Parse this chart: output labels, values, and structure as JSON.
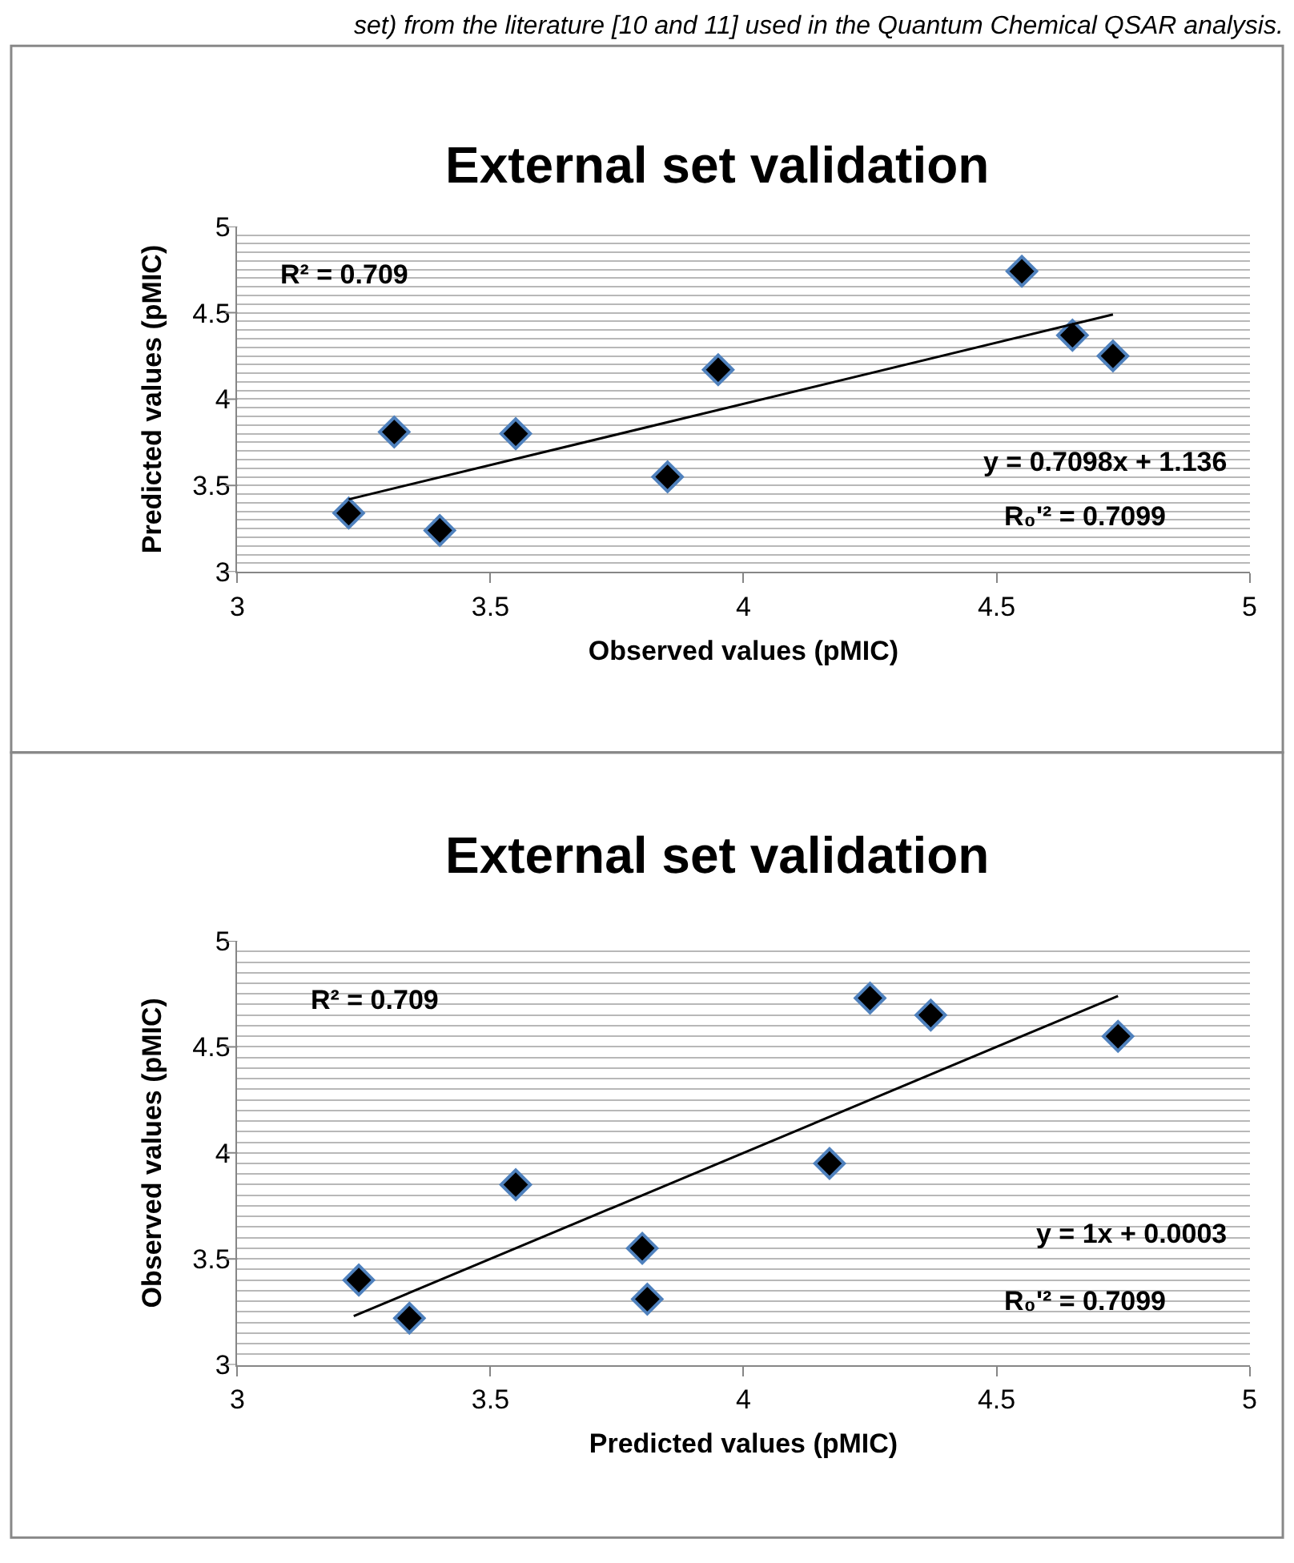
{
  "chart_data": [
    {
      "type": "scatter",
      "title": "External set validation",
      "xlabel": "Observed values (pMIC)",
      "ylabel": "Predicted values (pMIC)",
      "annotations": [
        "set) from the literature [10 and 11] used in the Quantum Chemical QSAR analysis.",
        "R² = 0.709",
        "y = 0.7098x + 1.136",
        "R₀'² = 0.7099"
      ],
      "series": [
        {
          "color": "#000000",
          "marker": "diamond",
          "x": [
            3.22,
            3.31,
            3.4,
            3.55,
            3.85,
            3.95,
            4.55,
            4.65,
            4.73
          ],
          "values": [
            3.34,
            3.81,
            3.24,
            3.8,
            3.55,
            4.17,
            4.74,
            4.37,
            4.25
          ]
        },
        {
          "type": "line",
          "color": "#000000",
          "x": [
            3.22,
            4.73
          ],
          "values": [
            3.42,
            4.49
          ]
        }
      ],
      "xlim": [
        3,
        5
      ],
      "xticks": [
        3,
        3.5,
        4,
        4.5,
        5
      ],
      "ylim": [
        3,
        5
      ],
      "yticks": [
        3,
        {
          "value": 3.05,
          "label": null
        },
        {
          "value": 3.1,
          "label": null
        },
        {
          "value": 3.15,
          "label": null
        },
        {
          "value": 3.2,
          "label": null
        },
        {
          "value": 3.25,
          "label": null
        },
        {
          "value": 3.3,
          "label": null
        },
        {
          "value": 3.35,
          "label": null
        },
        {
          "value": 3.4,
          "label": null
        },
        {
          "value": 3.45,
          "label": null
        },
        3.5,
        {
          "value": 3.55,
          "label": null
        },
        {
          "value": 3.6,
          "label": null
        },
        {
          "value": 3.65,
          "label": null
        },
        {
          "value": 3.7,
          "label": null
        },
        {
          "value": 3.75,
          "label": null
        },
        {
          "value": 3.8,
          "label": null
        },
        {
          "value": 3.85,
          "label": null
        },
        {
          "value": 3.9,
          "label": null
        },
        {
          "value": 3.95,
          "label": null
        },
        4,
        {
          "value": 4.05,
          "label": null
        },
        {
          "value": 4.1,
          "label": null
        },
        {
          "value": 4.15,
          "label": null
        },
        {
          "value": 4.2,
          "label": null
        },
        {
          "value": 4.25,
          "label": null
        },
        {
          "value": 4.3,
          "label": null
        },
        {
          "value": 4.35,
          "label": null
        },
        {
          "value": 4.4,
          "label": null
        },
        {
          "value": 4.45,
          "label": null
        },
        4.5,
        {
          "value": 4.55,
          "label": null
        },
        {
          "value": 4.6,
          "label": null
        },
        {
          "value": 4.65,
          "label": null
        },
        {
          "value": 4.7,
          "label": null
        },
        {
          "value": 4.75,
          "label": null
        },
        {
          "value": 4.8,
          "label": null
        },
        {
          "value": 4.85,
          "label": null
        },
        {
          "value": 4.9,
          "label": null
        },
        {
          "value": 4.95,
          "label": null
        },
        5
      ],
      "grid": "y"
    },
    {
      "type": "scatter",
      "title": "External set validation",
      "xlabel": "Predicted values (pMIC)",
      "ylabel": "Observed values (pMIC)",
      "annotations": [
        "R² = 0.709",
        "y = 1x + 0.0003",
        "R₀'² = 0.7099"
      ],
      "series": [
        {
          "color": "#000000",
          "marker": "diamond",
          "x": [
            3.34,
            3.81,
            3.24,
            3.8,
            3.55,
            4.17,
            4.74,
            4.37,
            4.25
          ],
          "values": [
            3.22,
            3.31,
            3.4,
            3.55,
            3.85,
            3.95,
            4.55,
            4.65,
            4.73
          ]
        },
        {
          "type": "line",
          "color": "#000000",
          "x": [
            3.23,
            4.74
          ],
          "values": [
            3.23,
            4.74
          ]
        }
      ],
      "xlim": [
        3,
        5
      ],
      "xticks": [
        3,
        3.5,
        4,
        4.5,
        5
      ],
      "ylim": [
        3,
        5
      ],
      "yticks": [
        3,
        {
          "value": 3.05,
          "label": null
        },
        {
          "value": 3.1,
          "label": null
        },
        {
          "value": 3.15,
          "label": null
        },
        {
          "value": 3.2,
          "label": null
        },
        {
          "value": 3.25,
          "label": null
        },
        {
          "value": 3.3,
          "label": null
        },
        {
          "value": 3.35,
          "label": null
        },
        {
          "value": 3.4,
          "label": null
        },
        {
          "value": 3.45,
          "label": null
        },
        3.5,
        {
          "value": 3.55,
          "label": null
        },
        {
          "value": 3.6,
          "label": null
        },
        {
          "value": 3.65,
          "label": null
        },
        {
          "value": 3.7,
          "label": null
        },
        {
          "value": 3.75,
          "label": null
        },
        {
          "value": 3.8,
          "label": null
        },
        {
          "value": 3.85,
          "label": null
        },
        {
          "value": 3.9,
          "label": null
        },
        {
          "value": 3.95,
          "label": null
        },
        4,
        {
          "value": 4.05,
          "label": null
        },
        {
          "value": 4.1,
          "label": null
        },
        {
          "value": 4.15,
          "label": null
        },
        {
          "value": 4.2,
          "label": null
        },
        {
          "value": 4.25,
          "label": null
        },
        {
          "value": 4.3,
          "label": null
        },
        {
          "value": 4.35,
          "label": null
        },
        {
          "value": 4.4,
          "label": null
        },
        {
          "value": 4.45,
          "label": null
        },
        4.5,
        {
          "value": 4.55,
          "label": null
        },
        {
          "value": 4.6,
          "label": null
        },
        {
          "value": 4.65,
          "label": null
        },
        {
          "value": 4.7,
          "label": null
        },
        {
          "value": 4.75,
          "label": null
        },
        {
          "value": 4.8,
          "label": null
        },
        {
          "value": 4.85,
          "label": null
        },
        {
          "value": 4.9,
          "label": null
        },
        {
          "value": 4.95,
          "label": null
        },
        5
      ],
      "grid": "y"
    }
  ]
}
